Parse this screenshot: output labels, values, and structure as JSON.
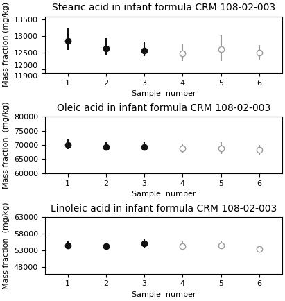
{
  "chart_data": [
    {
      "type": "scatter",
      "title": "Stearic acid in infant formula CRM 108-02-003",
      "xlabel": "Sample  number",
      "ylabel": "Mass fraction (mg/kg)",
      "xlim": [
        0.4,
        6.6
      ],
      "xticks": [
        1,
        2,
        3,
        4,
        5,
        6
      ],
      "ylim": [
        11900,
        13600
      ],
      "yticks": [
        11900,
        12000,
        12500,
        13000,
        13500
      ],
      "grid": false,
      "series": [
        {
          "color": "#111111",
          "marker": "filled circle",
          "x": [
            1,
            2,
            3
          ],
          "values": [
            12870,
            12630,
            12580
          ],
          "yerr_low": [
            280,
            210,
            170
          ],
          "yerr_high": [
            380,
            310,
            260
          ]
        },
        {
          "color": "#999999",
          "marker": "open circle",
          "x": [
            4,
            5,
            6
          ],
          "values": [
            12490,
            12620,
            12500
          ],
          "yerr_low": [
            240,
            370,
            200
          ],
          "yerr_high": [
            270,
            400,
            230
          ]
        }
      ]
    },
    {
      "type": "scatter",
      "title": "Oleic acid in infant formula CRM 108-02-003",
      "xlabel": "Sample  number",
      "ylabel": "Mass fraction  (mg/kg)",
      "xlim": [
        0.4,
        6.6
      ],
      "xticks": [
        1,
        2,
        3,
        4,
        5,
        6
      ],
      "ylim": [
        60000,
        80000
      ],
      "yticks": [
        60000,
        65000,
        70000,
        75000,
        80000
      ],
      "grid": false,
      "series": [
        {
          "color": "#111111",
          "marker": "filled circle",
          "x": [
            1,
            2,
            3
          ],
          "values": [
            70000,
            69200,
            69300
          ],
          "yerr_low": [
            1400,
            1100,
            1100
          ],
          "yerr_high": [
            2100,
            1700,
            1600
          ]
        },
        {
          "color": "#999999",
          "marker": "open circle",
          "x": [
            4,
            5,
            6
          ],
          "values": [
            68700,
            68800,
            68200
          ],
          "yerr_low": [
            1400,
            1900,
            1700
          ],
          "yerr_high": [
            1700,
            2100,
            1900
          ]
        }
      ]
    },
    {
      "type": "scatter",
      "title": "Linoleic acid in infant formula CRM 108-02-003",
      "xlabel": "Sample  number",
      "ylabel": "Mass fraction  (mg/kg)",
      "xlim": [
        0.4,
        6.6
      ],
      "xticks": [
        1,
        2,
        3,
        4,
        5,
        6
      ],
      "ylim": [
        46000,
        63000
      ],
      "yticks": [
        48000,
        53000,
        58000,
        63000
      ],
      "grid": false,
      "series": [
        {
          "color": "#111111",
          "marker": "filled circle",
          "x": [
            1,
            2,
            3
          ],
          "values": [
            54500,
            54200,
            55000
          ],
          "yerr_low": [
            1100,
            900,
            1100
          ],
          "yerr_high": [
            1400,
            1100,
            1500
          ]
        },
        {
          "color": "#999999",
          "marker": "open circle",
          "x": [
            4,
            5,
            6
          ],
          "values": [
            54300,
            54400,
            53400
          ],
          "yerr_low": [
            900,
            1100,
            900
          ],
          "yerr_high": [
            1300,
            1400,
            1100
          ]
        }
      ]
    }
  ]
}
